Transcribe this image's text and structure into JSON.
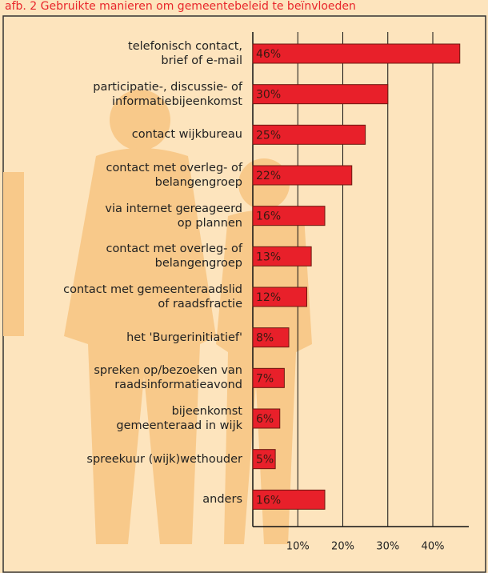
{
  "chart_data": {
    "type": "bar",
    "orientation": "horizontal",
    "title": "afb. 2 Gebruikte manieren om gemeentebeleid te beïnvloeden",
    "categories": [
      "telefonisch contact,\nbrief of e-mail",
      "participatie-, discussie- of\ninformatiebijeenkomst",
      "contact wijkbureau",
      "contact met overleg- of\nbelangengroep",
      "via internet gereageerd\nop plannen",
      "contact met overleg- of\nbelangengroep",
      "contact met gemeenteraadslid\nof raadsfractie",
      "het 'Burgerinitiatief'",
      "spreken op/bezoeken van\nraadsinformatieavond",
      "bijeenkomst\ngemeenteraad in wijk",
      "spreekuur (wijk)wethouder",
      "anders"
    ],
    "values": [
      46,
      30,
      25,
      22,
      16,
      13,
      12,
      8,
      7,
      6,
      5,
      16
    ],
    "value_labels": [
      "46%",
      "30%",
      "25%",
      "22%",
      "16%",
      "13%",
      "12%",
      "8%",
      "7%",
      "6%",
      "5%",
      "16%"
    ],
    "color": "#e8202a",
    "xlim": [
      0,
      48
    ],
    "xticks": [
      {
        "value": 10,
        "label": "10%"
      },
      {
        "value": 20,
        "label": "20%"
      },
      {
        "value": 30,
        "label": "30%"
      },
      {
        "value": 40,
        "label": "40%"
      }
    ],
    "grid": true
  }
}
